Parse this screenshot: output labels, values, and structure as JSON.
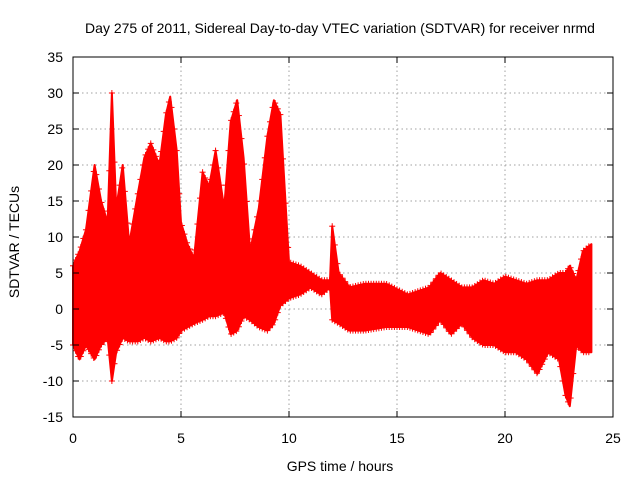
{
  "chart_data": {
    "type": "scatter",
    "title": "Day 275 of 2011, Sidereal Day-to-day VTEC variation (SDTVAR) for receiver nrmd",
    "xlabel": "GPS time / hours",
    "ylabel": "SDTVAR / TECUs",
    "xlim": [
      0,
      25
    ],
    "ylim": [
      -15,
      35
    ],
    "xticks": [
      0,
      5,
      10,
      15,
      20,
      25
    ],
    "yticks": [
      -15,
      -10,
      -5,
      0,
      5,
      10,
      15,
      20,
      25,
      30,
      35
    ],
    "grid": true,
    "marker": "plus",
    "series": [
      {
        "name": "SDTVAR",
        "color": "#ff0000",
        "envelope": {
          "x": [
            0.0,
            0.3,
            0.6,
            1.0,
            1.3,
            1.6,
            1.8,
            2.0,
            2.3,
            2.6,
            3.0,
            3.3,
            3.6,
            4.0,
            4.3,
            4.5,
            4.8,
            5.0,
            5.3,
            5.6,
            6.0,
            6.3,
            6.6,
            7.0,
            7.3,
            7.6,
            7.9,
            8.2,
            8.6,
            9.0,
            9.3,
            9.6,
            10.0,
            10.5,
            11.0,
            11.5,
            11.9,
            12.0,
            12.3,
            12.8,
            13.5,
            14.5,
            15.5,
            16.5,
            17.0,
            17.5,
            18.0,
            18.5,
            19.0,
            19.5,
            20.0,
            20.5,
            21.0,
            21.5,
            22.0,
            22.5,
            22.8,
            23.0,
            23.3,
            23.6,
            24.0
          ],
          "upper": [
            6.0,
            8.0,
            11.0,
            20.0,
            15.0,
            12.0,
            30.0,
            14.0,
            20.0,
            9.0,
            16.0,
            21.0,
            23.0,
            20.0,
            27.0,
            29.5,
            22.0,
            12.0,
            9.0,
            7.0,
            19.0,
            17.0,
            22.0,
            14.0,
            26.0,
            29.0,
            21.0,
            8.0,
            14.0,
            24.0,
            29.0,
            27.0,
            6.5,
            6.0,
            5.0,
            4.0,
            4.0,
            11.5,
            5.0,
            3.0,
            3.5,
            3.5,
            2.0,
            3.0,
            5.0,
            4.0,
            3.0,
            3.0,
            4.0,
            3.5,
            4.5,
            4.0,
            3.5,
            4.0,
            4.0,
            5.0,
            5.0,
            6.0,
            4.0,
            8.0,
            9.0
          ],
          "lower": [
            -5.0,
            -7.0,
            -5.0,
            -7.0,
            -5.0,
            -4.0,
            -10.0,
            -6.0,
            -4.0,
            -4.5,
            -4.5,
            -4.0,
            -4.5,
            -4.0,
            -4.5,
            -4.5,
            -4.0,
            -3.0,
            -2.5,
            -2.0,
            -1.5,
            -1.0,
            -1.0,
            -0.5,
            -3.5,
            -3.0,
            -1.0,
            -1.5,
            -2.5,
            -3.0,
            -2.0,
            0.5,
            1.5,
            2.0,
            3.0,
            2.0,
            3.0,
            -1.5,
            -2.0,
            -3.0,
            -3.0,
            -2.5,
            -2.5,
            -3.5,
            -1.5,
            -3.5,
            -2.0,
            -4.0,
            -5.0,
            -5.0,
            -6.0,
            -6.0,
            -7.0,
            -9.0,
            -6.0,
            -7.0,
            -12.0,
            -13.5,
            -5.0,
            -6.0,
            -6.0
          ]
        }
      }
    ]
  }
}
